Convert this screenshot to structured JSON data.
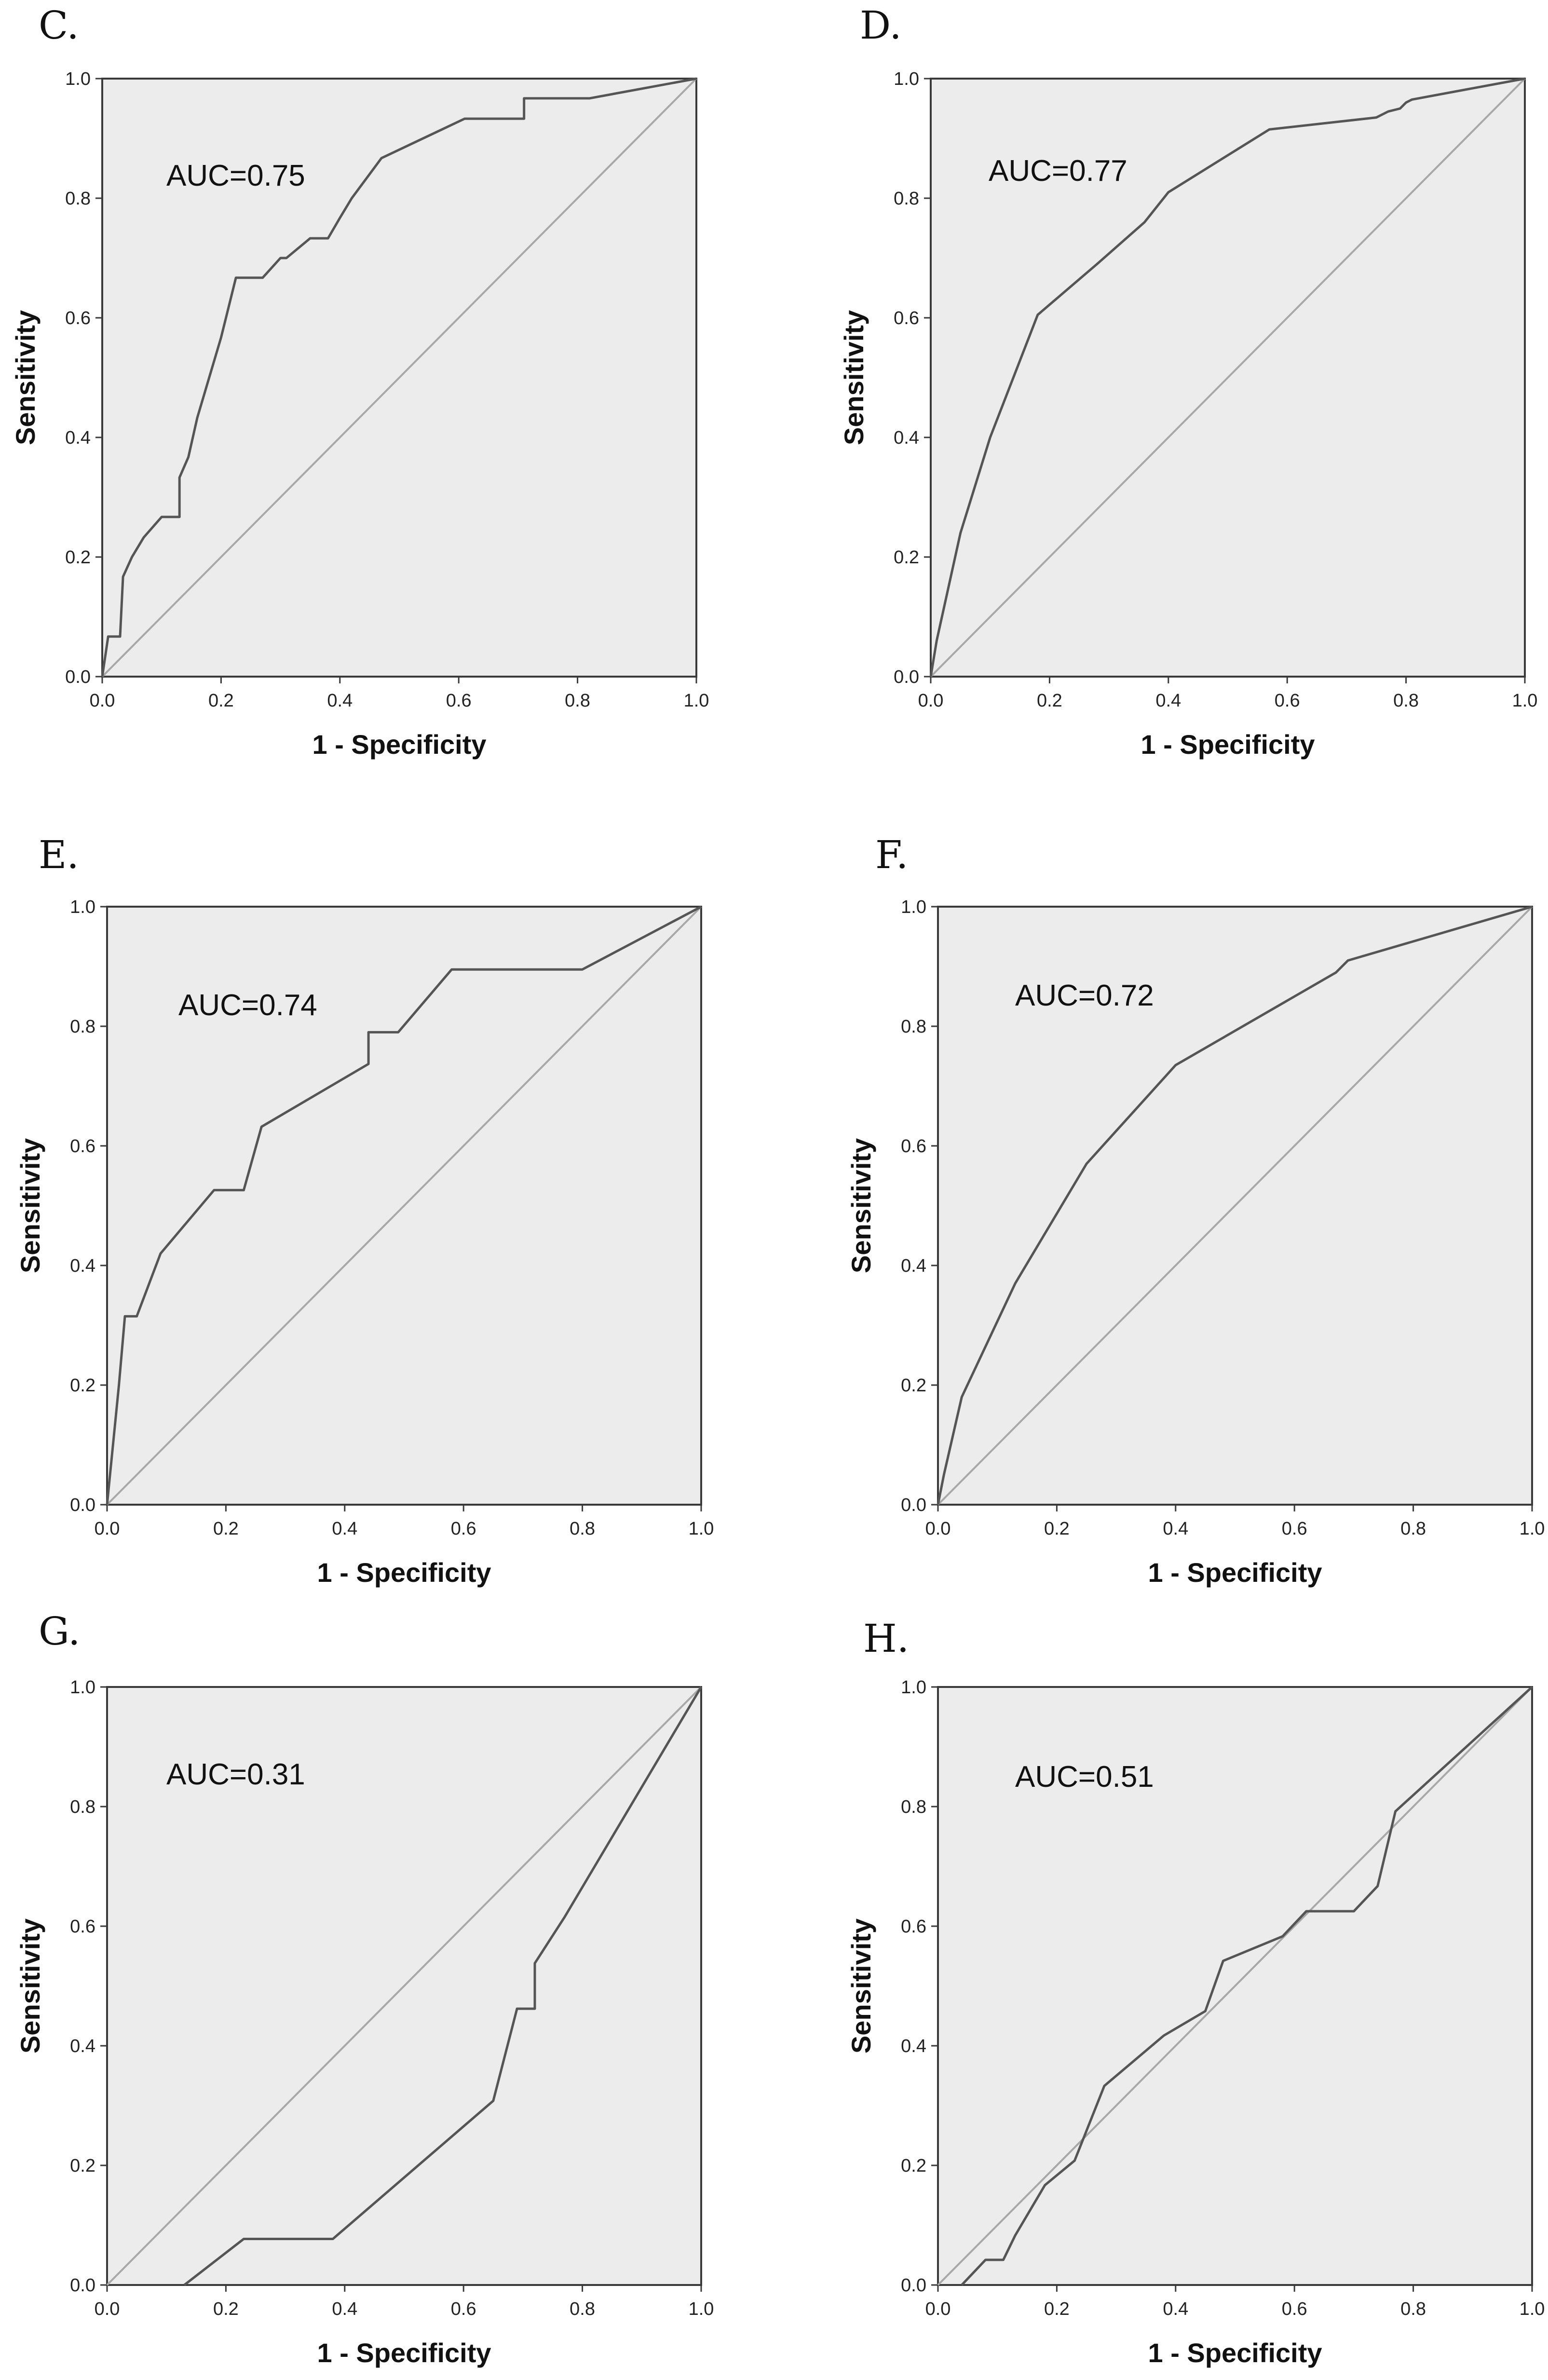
{
  "chart_data": [
    {
      "type": "line",
      "panel": "C.",
      "auc_label": "AUC=0.75",
      "xlabel": "1 - Specificity",
      "ylabel": "Sensitivity",
      "xlim": [
        0,
        1
      ],
      "ylim": [
        0,
        1
      ],
      "x_ticks": [
        "0.0",
        "0.2",
        "0.4",
        "0.6",
        "0.8",
        "1.0"
      ],
      "y_ticks": [
        "0.0",
        "0.2",
        "0.4",
        "0.6",
        "0.8",
        "1.0"
      ],
      "series": [
        {
          "name": "reference",
          "x": [
            0,
            1
          ],
          "y": [
            0,
            1
          ]
        },
        {
          "name": "ROC",
          "x": [
            0,
            0.01,
            0.03,
            0.035,
            0.05,
            0.07,
            0.1,
            0.13,
            0.13,
            0.145,
            0.16,
            0.2,
            0.225,
            0.27,
            0.3,
            0.31,
            0.35,
            0.38,
            0.4,
            0.42,
            0.47,
            0.61,
            0.71,
            0.71,
            0.82,
            1.0
          ],
          "y": [
            0,
            0.067,
            0.067,
            0.167,
            0.2,
            0.233,
            0.267,
            0.267,
            0.333,
            0.367,
            0.433,
            0.567,
            0.667,
            0.667,
            0.7,
            0.7,
            0.733,
            0.733,
            0.767,
            0.8,
            0.867,
            0.933,
            0.933,
            0.967,
            0.967,
            1.0
          ]
        }
      ]
    },
    {
      "type": "line",
      "panel": "D.",
      "auc_label": "AUC=0.77",
      "xlabel": "1 - Specificity",
      "ylabel": "Sensitivity",
      "xlim": [
        0,
        1
      ],
      "ylim": [
        0,
        1
      ],
      "x_ticks": [
        "0.0",
        "0.2",
        "0.4",
        "0.6",
        "0.8",
        "1.0"
      ],
      "y_ticks": [
        "0.0",
        "0.2",
        "0.4",
        "0.6",
        "0.8",
        "1.0"
      ],
      "series": [
        {
          "name": "reference",
          "x": [
            0,
            1
          ],
          "y": [
            0,
            1
          ]
        },
        {
          "name": "ROC",
          "x": [
            0,
            0.01,
            0.05,
            0.1,
            0.18,
            0.28,
            0.36,
            0.4,
            0.57,
            0.75,
            0.77,
            0.79,
            0.8,
            0.81,
            1.0
          ],
          "y": [
            0,
            0.06,
            0.24,
            0.4,
            0.605,
            0.69,
            0.76,
            0.81,
            0.915,
            0.935,
            0.945,
            0.95,
            0.96,
            0.965,
            1.0
          ]
        }
      ]
    },
    {
      "type": "line",
      "panel": "E.",
      "auc_label": "AUC=0.74",
      "xlabel": "1 - Specificity",
      "ylabel": "Sensitivity",
      "xlim": [
        0,
        1
      ],
      "ylim": [
        0,
        1
      ],
      "x_ticks": [
        "0.0",
        "0.2",
        "0.4",
        "0.6",
        "0.8",
        "1.0"
      ],
      "y_ticks": [
        "0.0",
        "0.2",
        "0.4",
        "0.6",
        "0.8",
        "1.0"
      ],
      "series": [
        {
          "name": "reference",
          "x": [
            0,
            1
          ],
          "y": [
            0,
            1
          ]
        },
        {
          "name": "ROC",
          "x": [
            0,
            0.02,
            0.03,
            0.05,
            0.09,
            0.18,
            0.23,
            0.26,
            0.44,
            0.44,
            0.49,
            0.58,
            0.8,
            1.0
          ],
          "y": [
            0,
            0.2,
            0.315,
            0.315,
            0.42,
            0.526,
            0.526,
            0.632,
            0.737,
            0.79,
            0.79,
            0.895,
            0.895,
            1.0
          ]
        }
      ]
    },
    {
      "type": "line",
      "panel": "F.",
      "auc_label": "AUC=0.72",
      "xlabel": "1 - Specificity",
      "ylabel": "Sensitivity",
      "xlim": [
        0,
        1
      ],
      "ylim": [
        0,
        1
      ],
      "x_ticks": [
        "0.0",
        "0.2",
        "0.4",
        "0.6",
        "0.8",
        "1.0"
      ],
      "y_ticks": [
        "0.0",
        "0.2",
        "0.4",
        "0.6",
        "0.8",
        "1.0"
      ],
      "series": [
        {
          "name": "reference",
          "x": [
            0,
            1
          ],
          "y": [
            0,
            1
          ]
        },
        {
          "name": "ROC",
          "x": [
            0,
            0.01,
            0.04,
            0.13,
            0.25,
            0.4,
            0.67,
            0.69,
            1.0
          ],
          "y": [
            0,
            0.05,
            0.18,
            0.37,
            0.57,
            0.735,
            0.89,
            0.91,
            1.0
          ]
        }
      ]
    },
    {
      "type": "line",
      "panel": "G.",
      "auc_label": "AUC=0.31",
      "xlabel": "1 - Specificity",
      "ylabel": "Sensitivity",
      "xlim": [
        0,
        1
      ],
      "ylim": [
        0,
        1
      ],
      "x_ticks": [
        "0.0",
        "0.2",
        "0.4",
        "0.6",
        "0.8",
        "1.0"
      ],
      "y_ticks": [
        "0.0",
        "0.2",
        "0.4",
        "0.6",
        "0.8",
        "1.0"
      ],
      "series": [
        {
          "name": "reference",
          "x": [
            0,
            1
          ],
          "y": [
            0,
            1
          ]
        },
        {
          "name": "ROC",
          "x": [
            0.13,
            0.23,
            0.38,
            0.65,
            0.69,
            0.72,
            0.72,
            0.77,
            1.0
          ],
          "y": [
            0,
            0.077,
            0.077,
            0.308,
            0.462,
            0.462,
            0.538,
            0.615,
            1.0
          ]
        }
      ]
    },
    {
      "type": "line",
      "panel": "H.",
      "auc_label": "AUC=0.51",
      "xlabel": "1 - Specificity",
      "ylabel": "Sensitivity",
      "xlim": [
        0,
        1
      ],
      "ylim": [
        0,
        1
      ],
      "x_ticks": [
        "0.0",
        "0.2",
        "0.4",
        "0.6",
        "0.8",
        "1.0"
      ],
      "y_ticks": [
        "0.0",
        "0.2",
        "0.4",
        "0.6",
        "0.8",
        "1.0"
      ],
      "series": [
        {
          "name": "reference",
          "x": [
            0,
            1
          ],
          "y": [
            0,
            1
          ]
        },
        {
          "name": "ROC",
          "x": [
            0.04,
            0.08,
            0.11,
            0.13,
            0.18,
            0.23,
            0.28,
            0.38,
            0.45,
            0.48,
            0.58,
            0.62,
            0.7,
            0.74,
            0.77,
            1.0
          ],
          "y": [
            0,
            0.042,
            0.042,
            0.083,
            0.167,
            0.208,
            0.333,
            0.417,
            0.458,
            0.542,
            0.583,
            0.625,
            0.625,
            0.667,
            0.792,
            1.0
          ]
        }
      ]
    }
  ]
}
